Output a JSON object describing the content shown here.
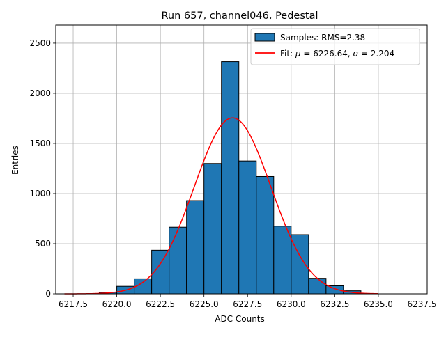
{
  "chart_data": {
    "type": "bar",
    "title": "Run 657, channel046, Pedestal",
    "xlabel": "ADC Counts",
    "ylabel": "Entries",
    "xlim": [
      6216.5,
      6237.8
    ],
    "ylim": [
      0,
      2680
    ],
    "x_ticks": [
      6217.5,
      6220.0,
      6222.5,
      6225.0,
      6227.5,
      6230.0,
      6232.5,
      6235.0,
      6237.5
    ],
    "x_tick_labels": [
      "6217.5",
      "6220.0",
      "6222.5",
      "6225.0",
      "6227.5",
      "6230.0",
      "6232.5",
      "6235.0",
      "6237.5"
    ],
    "y_ticks": [
      0,
      500,
      1000,
      1500,
      2000,
      2500
    ],
    "y_tick_labels": [
      "0",
      "500",
      "1000",
      "1500",
      "2000",
      "2500"
    ],
    "grid": true,
    "legend_position": "upper-right",
    "histogram": {
      "name": "Samples: RMS=2.38",
      "color": "#1f77b4",
      "edge_color": "#000000",
      "bins": [
        {
          "x0": 6219.0,
          "x1": 6220.0,
          "value": 15
        },
        {
          "x0": 6220.0,
          "x1": 6221.0,
          "value": 75
        },
        {
          "x0": 6221.0,
          "x1": 6222.0,
          "value": 150
        },
        {
          "x0": 6222.0,
          "x1": 6223.0,
          "value": 435
        },
        {
          "x0": 6223.0,
          "x1": 6224.0,
          "value": 665
        },
        {
          "x0": 6224.0,
          "x1": 6225.0,
          "value": 930
        },
        {
          "x0": 6225.0,
          "x1": 6226.0,
          "value": 1300
        },
        {
          "x0": 6226.0,
          "x1": 6227.0,
          "value": 2315
        },
        {
          "x0": 6227.0,
          "x1": 6228.0,
          "value": 1325
        },
        {
          "x0": 6228.0,
          "x1": 6229.0,
          "value": 1170
        },
        {
          "x0": 6229.0,
          "x1": 6230.0,
          "value": 675
        },
        {
          "x0": 6230.0,
          "x1": 6231.0,
          "value": 590
        },
        {
          "x0": 6231.0,
          "x1": 6232.0,
          "value": 155
        },
        {
          "x0": 6232.0,
          "x1": 6233.0,
          "value": 80
        },
        {
          "x0": 6233.0,
          "x1": 6234.0,
          "value": 30
        }
      ]
    },
    "fit": {
      "name_prefix": "Fit: ",
      "mu_symbol": "μ",
      "mu_value": " = 6226.64, ",
      "sigma_symbol": "σ",
      "sigma_value": " = 2.204",
      "color": "#ff0000",
      "mu": 6226.64,
      "sigma": 2.204,
      "amplitude": 1755,
      "x_range": [
        6217.0,
        6235.0
      ]
    }
  }
}
